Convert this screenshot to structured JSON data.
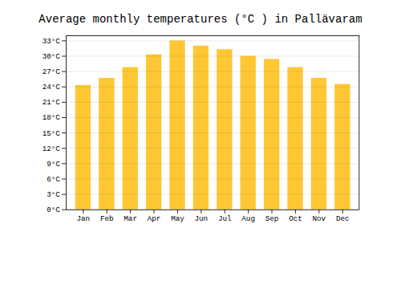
{
  "chart_data": {
    "type": "bar",
    "title": "Average monthly temperatures (°C ) in Pallävaram",
    "categories": [
      "Jan",
      "Feb",
      "Mar",
      "Apr",
      "May",
      "Jun",
      "Jul",
      "Aug",
      "Sep",
      "Oct",
      "Nov",
      "Dec"
    ],
    "values": [
      24.3,
      25.7,
      27.8,
      30.3,
      33.0,
      32.0,
      31.3,
      30.0,
      29.4,
      27.8,
      25.7,
      24.5
    ],
    "color": "#FFC733",
    "ylim": [
      0,
      34
    ],
    "yticks": [
      {
        "value": 0,
        "label": "0°C"
      },
      {
        "value": 3,
        "label": "3°C"
      },
      {
        "value": 6,
        "label": "6°C"
      },
      {
        "value": 9,
        "label": "9°C"
      },
      {
        "value": 12,
        "label": "12°C"
      },
      {
        "value": 15,
        "label": "15°C"
      },
      {
        "value": 18,
        "label": "18°C"
      },
      {
        "value": 21,
        "label": "21°C"
      },
      {
        "value": 24,
        "label": "24°C"
      },
      {
        "value": 27,
        "label": "27°C"
      },
      {
        "value": 30,
        "label": "30°C"
      },
      {
        "value": 33,
        "label": "33°C"
      }
    ],
    "grid": true
  }
}
